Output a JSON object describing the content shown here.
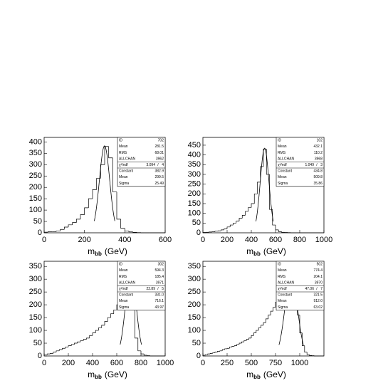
{
  "chart_data": [
    {
      "type": "histogram",
      "xlabel": {
        "main": "m",
        "sub": "bb",
        "unit": "(GeV)"
      },
      "bins": [
        0,
        20,
        40,
        60,
        80,
        100,
        120,
        140,
        160,
        180,
        200,
        220,
        240,
        260,
        280,
        300,
        320,
        340,
        360,
        380,
        400,
        420,
        440,
        460,
        480,
        500,
        520,
        540,
        560,
        580,
        600
      ],
      "values": [
        3,
        5,
        5,
        8,
        15,
        25,
        35,
        45,
        60,
        80,
        110,
        150,
        190,
        240,
        300,
        380,
        330,
        180,
        60,
        20,
        8,
        4,
        2,
        1,
        0,
        0,
        0,
        0,
        0,
        0
      ],
      "xlim": [
        0,
        600
      ],
      "xticks": [
        0,
        200,
        400,
        600
      ],
      "ylim": [
        0,
        420
      ],
      "yticks": [
        0,
        50,
        100,
        150,
        200,
        250,
        300,
        350,
        400
      ],
      "stats": [
        {
          "label": "ID",
          "value": "702"
        },
        {
          "label": "Mean",
          "value": "281.5"
        },
        {
          "label": "RMS",
          "value": "68.01"
        },
        {
          "label": "ALLCHAN",
          "value": "3962"
        },
        {
          "label": "χ²/ndf",
          "value": "3.094",
          "ndf": "4"
        },
        {
          "label": "Constant",
          "value": "382.9"
        },
        {
          "label": "Mean",
          "value": "299.5"
        },
        {
          "label": "Sigma",
          "value": "25.49"
        }
      ]
    },
    {
      "type": "histogram",
      "xlabel": {
        "main": "m",
        "sub": "bb",
        "unit": "(GeV)"
      },
      "bins": [
        0,
        25,
        50,
        75,
        100,
        125,
        150,
        175,
        200,
        225,
        250,
        275,
        300,
        325,
        350,
        375,
        400,
        425,
        450,
        475,
        500,
        525,
        550,
        575,
        600,
        625,
        650,
        675,
        700,
        725,
        750,
        775,
        800,
        825,
        850,
        875,
        900,
        925,
        950,
        975,
        1000
      ],
      "values": [
        2,
        3,
        4,
        5,
        8,
        10,
        15,
        20,
        30,
        40,
        50,
        60,
        75,
        90,
        110,
        130,
        150,
        200,
        260,
        340,
        430,
        300,
        120,
        40,
        15,
        6,
        3,
        2,
        1,
        0,
        0,
        0,
        0,
        0,
        0,
        0,
        0,
        0,
        0,
        0
      ],
      "xlim": [
        0,
        1000
      ],
      "xticks": [
        0,
        200,
        400,
        600,
        800,
        1000
      ],
      "ylim": [
        0,
        490
      ],
      "yticks": [
        0,
        50,
        100,
        150,
        200,
        250,
        300,
        350,
        400,
        450
      ],
      "stats": [
        {
          "label": "ID",
          "value": "102"
        },
        {
          "label": "Mean",
          "value": "432.1"
        },
        {
          "label": "RMS",
          "value": "110.2"
        },
        {
          "label": "ALLCHAN",
          "value": "3968"
        },
        {
          "label": "χ²/ndf",
          "value": "1.049",
          "ndf": "3"
        },
        {
          "label": "Constant",
          "value": "434.8"
        },
        {
          "label": "Mean",
          "value": "509.8"
        },
        {
          "label": "Sigma",
          "value": "35.86"
        }
      ]
    },
    {
      "type": "histogram",
      "xlabel": {
        "main": "m",
        "sub": "bb",
        "unit": "(GeV)"
      },
      "bins": [
        0,
        25,
        50,
        75,
        100,
        125,
        150,
        175,
        200,
        225,
        250,
        275,
        300,
        325,
        350,
        375,
        400,
        425,
        450,
        475,
        500,
        525,
        550,
        575,
        600,
        625,
        650,
        675,
        700,
        725,
        750,
        775,
        800,
        825,
        850,
        875,
        900,
        925,
        950,
        975,
        1000
      ],
      "values": [
        5,
        8,
        10,
        15,
        20,
        25,
        30,
        35,
        40,
        45,
        50,
        55,
        60,
        65,
        70,
        80,
        90,
        100,
        110,
        120,
        135,
        150,
        165,
        180,
        200,
        230,
        260,
        290,
        310,
        180,
        70,
        20,
        8,
        3,
        1,
        0,
        0,
        0,
        0,
        0
      ],
      "xlim": [
        0,
        1000
      ],
      "xticks": [
        0,
        200,
        400,
        600,
        800,
        1000
      ],
      "ylim": [
        0,
        370
      ],
      "yticks": [
        0,
        50,
        100,
        150,
        200,
        250,
        300,
        350
      ],
      "stats": [
        {
          "label": "ID",
          "value": "302"
        },
        {
          "label": "Mean",
          "value": "594.3"
        },
        {
          "label": "RMS",
          "value": "185.4"
        },
        {
          "label": "ALLCHAN",
          "value": "3971"
        },
        {
          "label": "χ²/ndf",
          "value": "22.89",
          "ndf": "5"
        },
        {
          "label": "Constant",
          "value": "331.0"
        },
        {
          "label": "Mean",
          "value": "716.1"
        },
        {
          "label": "Sigma",
          "value": "43.97"
        }
      ]
    },
    {
      "type": "histogram",
      "xlabel": {
        "main": "m",
        "sub": "bb",
        "unit": "(GeV)"
      },
      "bins": [
        0,
        25,
        50,
        75,
        100,
        125,
        150,
        175,
        200,
        225,
        250,
        275,
        300,
        325,
        350,
        375,
        400,
        425,
        450,
        475,
        500,
        525,
        550,
        575,
        600,
        625,
        650,
        675,
        700,
        725,
        750,
        775,
        800,
        825,
        850,
        875,
        900,
        925,
        950,
        975,
        1000,
        1025,
        1050,
        1075,
        1100,
        1125,
        1150,
        1175,
        1200,
        1225,
        1250
      ],
      "values": [
        3,
        5,
        8,
        10,
        12,
        15,
        18,
        20,
        25,
        28,
        30,
        35,
        38,
        40,
        45,
        50,
        55,
        60,
        65,
        70,
        80,
        90,
        100,
        110,
        120,
        130,
        145,
        160,
        175,
        190,
        210,
        230,
        260,
        280,
        300,
        320,
        310,
        280,
        230,
        160,
        90,
        40,
        15,
        5,
        2,
        1,
        0,
        0,
        0,
        0
      ],
      "xlim": [
        0,
        1250
      ],
      "xticks": [
        0,
        250,
        500,
        750,
        1000
      ],
      "ylim": [
        0,
        370
      ],
      "yticks": [
        0,
        50,
        100,
        150,
        200,
        250,
        300,
        350
      ],
      "stats": [
        {
          "label": "ID",
          "value": "502"
        },
        {
          "label": "Mean",
          "value": "774.4"
        },
        {
          "label": "RMS",
          "value": "204.1"
        },
        {
          "label": "ALLCHAN",
          "value": "3970"
        },
        {
          "label": "χ²/ndf",
          "value": "47.06",
          "ndf": "7"
        },
        {
          "label": "Constant",
          "value": "321.5"
        },
        {
          "label": "Mean",
          "value": "912.0"
        },
        {
          "label": "Sigma",
          "value": "63.02"
        }
      ]
    }
  ]
}
